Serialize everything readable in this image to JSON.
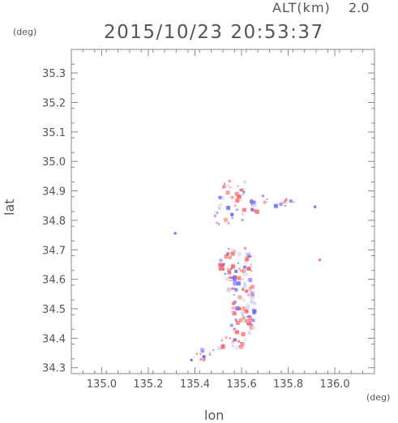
{
  "header": {
    "altitude_label": "ALT(km)",
    "altitude_value": "2.0",
    "timestamp": "2015/10/23 20:53:37"
  },
  "chart_data": {
    "type": "heatmap",
    "title": "2015/10/23 20:53:37",
    "xlabel": "lon",
    "ylabel": "lat",
    "x_unit": "(deg)",
    "y_unit": "(deg)",
    "xlim": [
      134.87,
      136.17
    ],
    "ylim": [
      34.28,
      35.38
    ],
    "xticks": [
      "135.0",
      "135.2",
      "135.4",
      "135.6",
      "135.8",
      "136.0"
    ],
    "yticks": [
      "34.3",
      "34.4",
      "34.5",
      "34.6",
      "34.7",
      "34.8",
      "34.9",
      "35.0",
      "35.1",
      "35.2",
      "35.3"
    ],
    "grid": false,
    "colors": {
      "positive": "#ff6b6b",
      "negative": "#6b6bff",
      "neutral": "#d8d8f0",
      "frame": "#888888"
    },
    "clusters": [
      {
        "lon": 135.55,
        "lat": 34.91,
        "w": 0.06,
        "h": 0.03,
        "n": 18
      },
      {
        "lon": 135.54,
        "lat": 34.83,
        "w": 0.06,
        "h": 0.04,
        "n": 14
      },
      {
        "lon": 135.6,
        "lat": 34.85,
        "w": 0.05,
        "h": 0.05,
        "n": 14
      },
      {
        "lon": 135.67,
        "lat": 34.85,
        "w": 0.04,
        "h": 0.04,
        "n": 10
      },
      {
        "lon": 135.78,
        "lat": 34.87,
        "w": 0.05,
        "h": 0.02,
        "n": 10
      },
      {
        "lon": 135.57,
        "lat": 34.67,
        "w": 0.07,
        "h": 0.04,
        "n": 40
      },
      {
        "lon": 135.58,
        "lat": 34.6,
        "w": 0.06,
        "h": 0.04,
        "n": 45
      },
      {
        "lon": 135.6,
        "lat": 34.53,
        "w": 0.05,
        "h": 0.04,
        "n": 35
      },
      {
        "lon": 135.6,
        "lat": 34.45,
        "w": 0.05,
        "h": 0.03,
        "n": 28
      },
      {
        "lon": 135.55,
        "lat": 34.39,
        "w": 0.06,
        "h": 0.02,
        "n": 18
      },
      {
        "lon": 135.44,
        "lat": 34.35,
        "w": 0.05,
        "h": 0.02,
        "n": 12
      }
    ],
    "isolated_points": [
      {
        "lon": 135.31,
        "lat": 34.76,
        "sign": "negative"
      },
      {
        "lon": 135.93,
        "lat": 34.67,
        "sign": "positive"
      },
      {
        "lon": 135.91,
        "lat": 34.85,
        "sign": "negative"
      },
      {
        "lon": 135.38,
        "lat": 34.33,
        "sign": "negative"
      }
    ]
  }
}
